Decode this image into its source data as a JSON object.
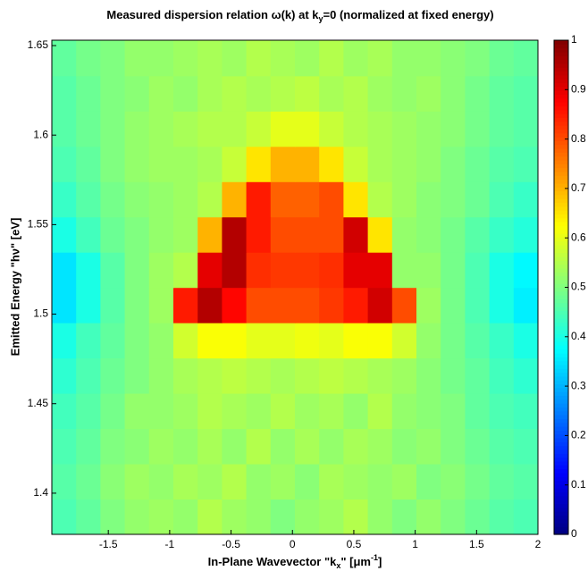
{
  "chart_data": {
    "type": "heatmap",
    "title": [
      "Measured dispersion relation ω(k) at k",
      "y",
      "=0 (normalized at fixed energy)"
    ],
    "xlabel": [
      "In-Plane Wavevector \"k",
      "x",
      "\" [μm",
      "-1",
      "]"
    ],
    "ylabel": "Emitted Energy \"hν\" [eV]",
    "colormap": "jet",
    "xlim": [
      -1.96,
      2
    ],
    "ylim": [
      1.377,
      1.653
    ],
    "xticks": [
      -1.5,
      -1,
      -0.5,
      0,
      0.5,
      1,
      1.5,
      2
    ],
    "yticks": [
      1.4,
      1.45,
      1.5,
      1.55,
      1.6,
      1.65
    ],
    "clim": [
      0,
      1
    ],
    "cticks": [
      0,
      0.1,
      0.2,
      0.3,
      0.4,
      0.5,
      0.6,
      0.7,
      0.8,
      0.9,
      1
    ],
    "xbins": [
      -1.96,
      -1.762,
      -1.564,
      -1.366,
      -1.168,
      -0.97,
      -0.772,
      -0.574,
      -0.376,
      -0.178,
      0.02,
      0.218,
      0.416,
      0.614,
      0.812,
      1.01,
      1.208,
      1.406,
      1.604,
      1.802,
      2.0
    ],
    "ybins": [
      1.377,
      1.3967,
      1.4164,
      1.4361,
      1.4558,
      1.4755,
      1.4952,
      1.5149,
      1.5346,
      1.5543,
      1.574,
      1.5937,
      1.6134,
      1.6331,
      1.653
    ],
    "z": [
      [
        0.45,
        0.47,
        0.5,
        0.52,
        0.53,
        0.52,
        0.55,
        0.53,
        0.52,
        0.5,
        0.52,
        0.53,
        0.55,
        0.52,
        0.5,
        0.52,
        0.5,
        0.48,
        0.46,
        0.45
      ],
      [
        0.46,
        0.48,
        0.51,
        0.53,
        0.52,
        0.54,
        0.53,
        0.55,
        0.52,
        0.53,
        0.51,
        0.54,
        0.53,
        0.52,
        0.53,
        0.5,
        0.51,
        0.49,
        0.47,
        0.46
      ],
      [
        0.45,
        0.47,
        0.5,
        0.51,
        0.53,
        0.52,
        0.54,
        0.52,
        0.55,
        0.52,
        0.54,
        0.52,
        0.54,
        0.53,
        0.51,
        0.52,
        0.5,
        0.48,
        0.46,
        0.45
      ],
      [
        0.44,
        0.46,
        0.49,
        0.52,
        0.52,
        0.53,
        0.55,
        0.54,
        0.53,
        0.55,
        0.53,
        0.54,
        0.52,
        0.55,
        0.52,
        0.51,
        0.5,
        0.47,
        0.45,
        0.44
      ],
      [
        0.42,
        0.45,
        0.48,
        0.5,
        0.52,
        0.54,
        0.55,
        0.56,
        0.55,
        0.54,
        0.55,
        0.56,
        0.55,
        0.54,
        0.53,
        0.51,
        0.49,
        0.47,
        0.44,
        0.42
      ],
      [
        0.4,
        0.44,
        0.47,
        0.5,
        0.52,
        0.58,
        0.62,
        0.62,
        0.6,
        0.6,
        0.61,
        0.6,
        0.62,
        0.62,
        0.58,
        0.52,
        0.49,
        0.46,
        0.43,
        0.4
      ],
      [
        0.35,
        0.4,
        0.46,
        0.5,
        0.53,
        0.85,
        0.95,
        0.87,
        0.8,
        0.8,
        0.8,
        0.82,
        0.85,
        0.92,
        0.8,
        0.53,
        0.49,
        0.45,
        0.4,
        0.36
      ],
      [
        0.35,
        0.4,
        0.46,
        0.5,
        0.53,
        0.55,
        0.9,
        0.95,
        0.83,
        0.82,
        0.82,
        0.83,
        0.9,
        0.9,
        0.52,
        0.52,
        0.49,
        0.45,
        0.4,
        0.37
      ],
      [
        0.4,
        0.44,
        0.48,
        0.5,
        0.52,
        0.53,
        0.7,
        0.95,
        0.85,
        0.8,
        0.8,
        0.8,
        0.92,
        0.65,
        0.52,
        0.51,
        0.49,
        0.46,
        0.43,
        0.41
      ],
      [
        0.43,
        0.46,
        0.49,
        0.51,
        0.52,
        0.53,
        0.55,
        0.7,
        0.85,
        0.78,
        0.78,
        0.8,
        0.65,
        0.55,
        0.53,
        0.51,
        0.5,
        0.48,
        0.45,
        0.43
      ],
      [
        0.45,
        0.47,
        0.5,
        0.52,
        0.53,
        0.53,
        0.54,
        0.57,
        0.65,
        0.7,
        0.7,
        0.65,
        0.57,
        0.54,
        0.53,
        0.52,
        0.5,
        0.48,
        0.46,
        0.45
      ],
      [
        0.46,
        0.48,
        0.5,
        0.52,
        0.53,
        0.54,
        0.55,
        0.55,
        0.57,
        0.6,
        0.6,
        0.57,
        0.55,
        0.54,
        0.53,
        0.52,
        0.51,
        0.49,
        0.47,
        0.46
      ],
      [
        0.46,
        0.48,
        0.5,
        0.51,
        0.53,
        0.52,
        0.54,
        0.55,
        0.54,
        0.55,
        0.56,
        0.54,
        0.55,
        0.53,
        0.52,
        0.53,
        0.51,
        0.49,
        0.47,
        0.46
      ],
      [
        0.47,
        0.49,
        0.5,
        0.52,
        0.52,
        0.53,
        0.54,
        0.53,
        0.55,
        0.54,
        0.53,
        0.55,
        0.53,
        0.54,
        0.52,
        0.52,
        0.51,
        0.5,
        0.48,
        0.47
      ]
    ]
  }
}
